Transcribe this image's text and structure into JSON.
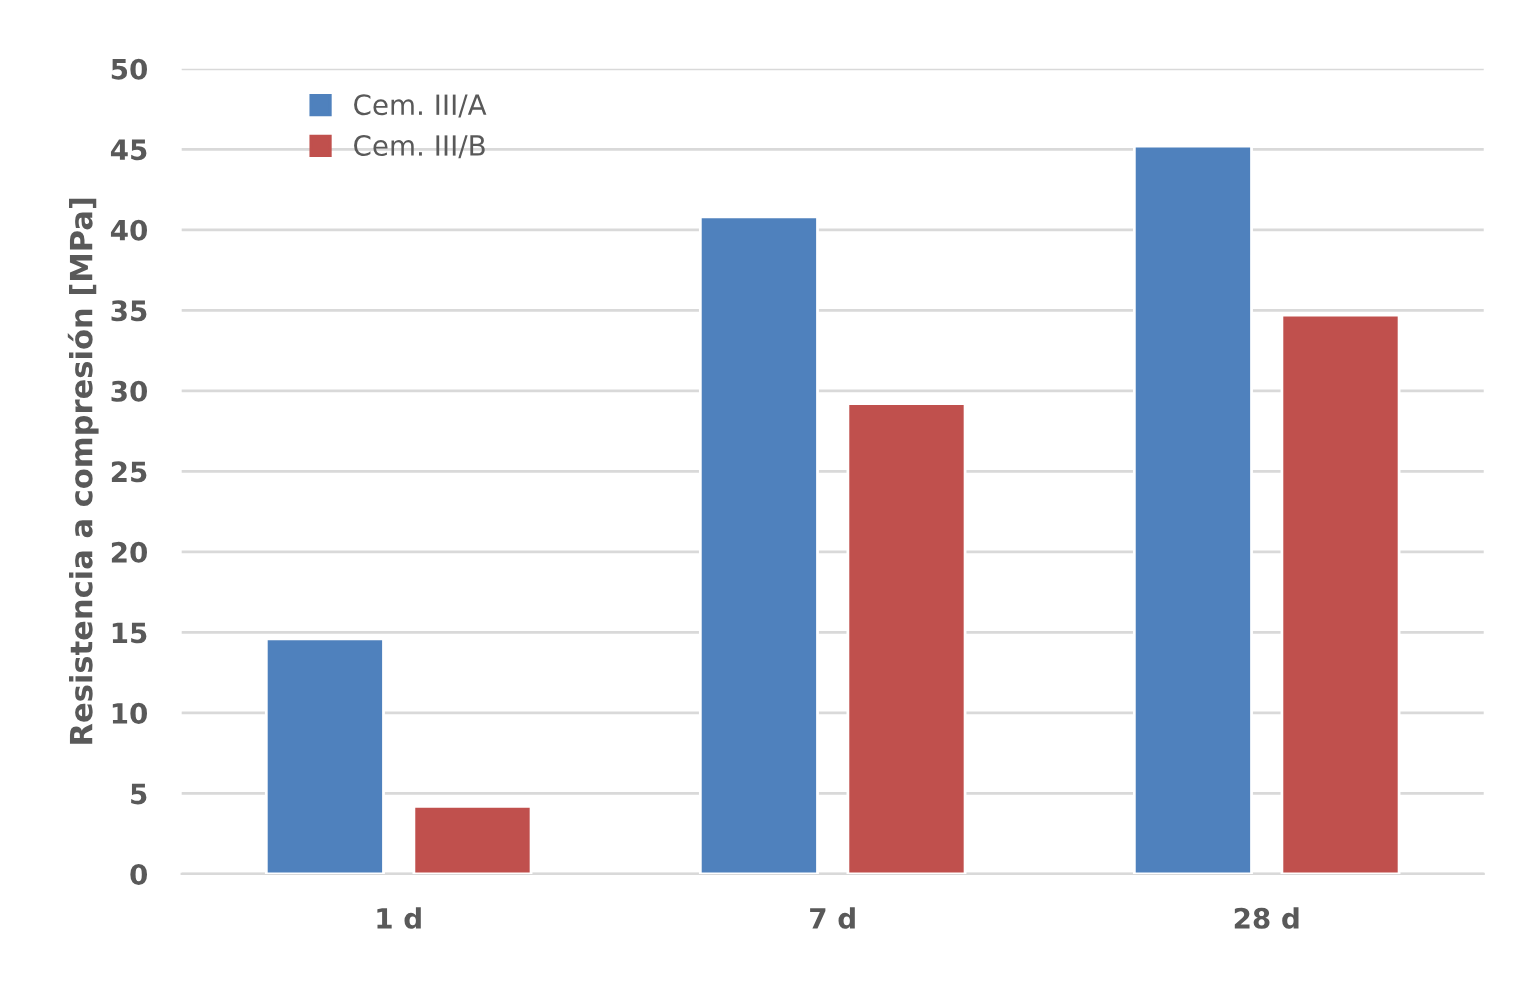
{
  "chart_data": {
    "type": "bar",
    "ylabel": "Resistencia a compresión [MPa]",
    "categories": [
      "1 d",
      "7 d",
      "28 d"
    ],
    "series": [
      {
        "name": "Cem. III/A",
        "color": "#4f81bd",
        "values": [
          14.6,
          40.8,
          45.2
        ]
      },
      {
        "name": "Cem. III/B",
        "color": "#c0504d",
        "values": [
          4.2,
          29.2,
          34.7
        ]
      }
    ],
    "ylim": [
      0,
      50
    ],
    "yticks": [
      0,
      5,
      10,
      15,
      20,
      25,
      30,
      35,
      40,
      45,
      50
    ],
    "grid": "y",
    "legend": "top left"
  }
}
